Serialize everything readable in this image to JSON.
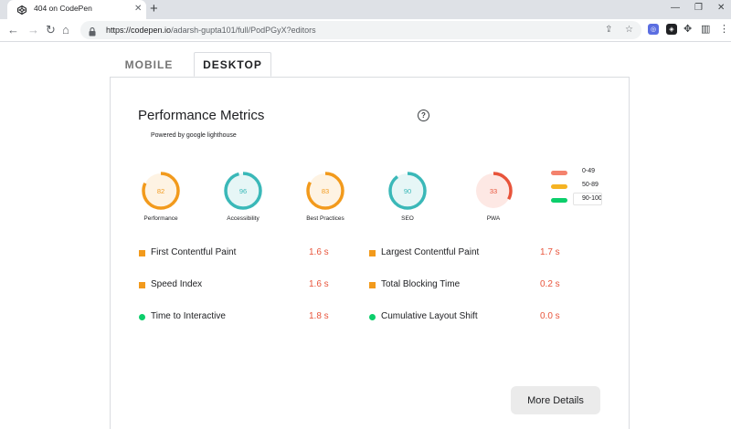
{
  "browser": {
    "tab_title": "404 on CodePen",
    "tab_close": "✕",
    "new_tab": "+",
    "url_domain": "https://codepen.io",
    "url_path": "/adarsh-gupta101/full/PodPGyX?editors",
    "window_minimize": "—",
    "window_maximize": "❐",
    "window_close": "✕"
  },
  "page": {
    "mode_tabs": [
      "MOBILE",
      "DESKTOP"
    ],
    "active_tab": "DESKTOP",
    "title": "Performance Metrics",
    "subtitle": "Powered by google lighthouse",
    "help": "?",
    "gauges": [
      {
        "label": "Performance",
        "score": 82,
        "color": "#f29a1c",
        "fill": "#fef3e3"
      },
      {
        "label": "Accessibility",
        "score": 96,
        "color": "#3ab8b8",
        "fill": "#e6f6f6"
      },
      {
        "label": "Best Practices",
        "score": 83,
        "color": "#f29a1c",
        "fill": "#fef3e3"
      },
      {
        "label": "SEO",
        "score": 90,
        "color": "#3ab8b8",
        "fill": "#e6f6f6"
      },
      {
        "label": "PWA",
        "score": 33,
        "color": "#e8543b",
        "fill": "#fde8e4"
      }
    ],
    "legend": [
      {
        "range": "0-49",
        "color": "#f4826d"
      },
      {
        "range": "50-89",
        "color": "#f5b323"
      },
      {
        "range": "90-100",
        "color": "#0cce6b"
      }
    ],
    "metrics": [
      {
        "name": "First Contentful Paint",
        "value": "1.6 s",
        "marker": "square"
      },
      {
        "name": "Largest Contentful Paint",
        "value": "1.7 s",
        "marker": "square"
      },
      {
        "name": "Speed Index",
        "value": "1.6 s",
        "marker": "square"
      },
      {
        "name": "Total Blocking Time",
        "value": "0.2 s",
        "marker": "square"
      },
      {
        "name": "Time to Interactive",
        "value": "1.8 s",
        "marker": "circle"
      },
      {
        "name": "Cumulative Layout Shift",
        "value": "0.0 s",
        "marker": "circle"
      }
    ],
    "more_details": "More Details"
  }
}
